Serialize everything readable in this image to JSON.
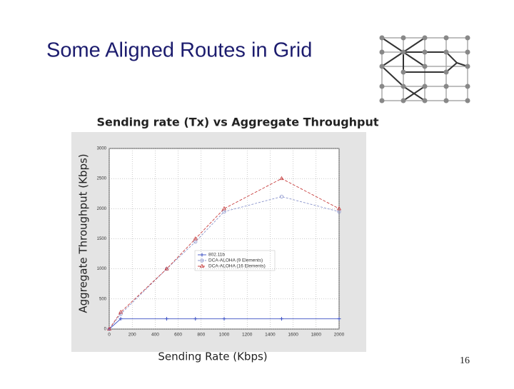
{
  "slide": {
    "title": "Some Aligned Routes in Grid",
    "page_number": "16"
  },
  "chart_data": {
    "type": "line",
    "title": "Sending rate (Tx) vs Aggregate Throughput",
    "x_label": "Sending Rate (Kbps)",
    "y_label": "Aggregate Throughput (Kbps)",
    "x": [
      0,
      100,
      500,
      750,
      1000,
      1500,
      2000
    ],
    "series": [
      {
        "name": "802.11b",
        "color": "#3a4fc4",
        "marker": "plus",
        "values": [
          0,
          170,
          170,
          170,
          170,
          170,
          170
        ]
      },
      {
        "name": "DCA-ALOHA (9 Elements)",
        "color": "#8a94cc",
        "marker": "circle",
        "values": [
          0,
          250,
          1000,
          1450,
          1950,
          2200,
          1950
        ]
      },
      {
        "name": "DCA-ALOHA (16 Elements)",
        "color": "#c84040",
        "marker": "triangle",
        "values": [
          0,
          280,
          1000,
          1500,
          2000,
          2500,
          2000
        ]
      }
    ],
    "xlim": [
      0,
      2000
    ],
    "xticks": [
      0,
      200,
      400,
      600,
      800,
      1000,
      1200,
      1400,
      1600,
      1800,
      2000
    ],
    "ylim": [
      0,
      3000
    ],
    "yticks": [
      0,
      500,
      1000,
      1500,
      2000,
      2500,
      3000
    ],
    "grid": true
  }
}
